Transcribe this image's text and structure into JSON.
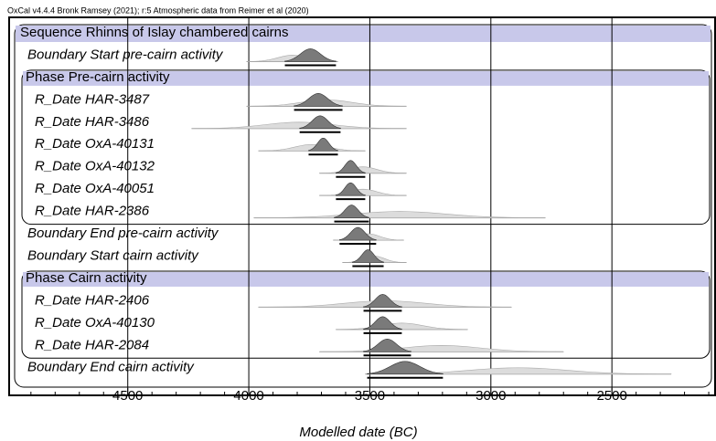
{
  "chart_data": {
    "type": "oxcal",
    "header": "OxCal v4.4.4 Bronk Ramsey (2021); r:5 Atmospheric data from Reimer et al (2020)",
    "x_label": "Modelled date (BC)",
    "xlim": [
      4990,
      2070
    ],
    "xticks": [
      4500,
      4000,
      3500,
      3000,
      2500
    ],
    "minor_xticks": [
      4900,
      4800,
      4700,
      4600,
      4400,
      4300,
      4200,
      4100,
      3900,
      3800,
      3700,
      3600,
      3400,
      3300,
      3200,
      3100,
      2900,
      2800,
      2700,
      2600,
      2400,
      2300,
      2200,
      2100
    ],
    "rows": [
      {
        "label": "Sequence Rhinns of Islay chambered cairns",
        "kind": "sequence"
      },
      {
        "label": "Boundary Start pre-cairn activity",
        "range": [
          3851,
          3640
        ],
        "extent": [
          4009,
          3632
        ]
      },
      {
        "label": "Phase Pre-cairn activity",
        "kind": "phase"
      },
      {
        "label": "R_Date HAR-3487",
        "range": [
          3813,
          3613
        ],
        "extent": [
          4009,
          3349
        ]
      },
      {
        "label": "R_Date HAR-3486",
        "range": [
          3790,
          3621
        ],
        "extent": [
          4236,
          3349
        ]
      },
      {
        "label": "R_Date OxA-40131",
        "range": [
          3753,
          3632
        ],
        "extent": [
          3960,
          3519
        ]
      },
      {
        "label": "R_Date OxA-40132",
        "range": [
          3640,
          3519
        ],
        "extent": [
          3708,
          3349
        ]
      },
      {
        "label": "R_Date OxA-40051",
        "range": [
          3640,
          3519
        ],
        "extent": [
          3708,
          3349
        ]
      },
      {
        "label": "R_Date HAR-2386",
        "range": [
          3647,
          3504
        ],
        "extent": [
          3979,
          2775
        ]
      },
      {
        "label": "Boundary End pre-cairn activity",
        "range": [
          3625,
          3474
        ],
        "extent": [
          3651,
          3360
        ]
      },
      {
        "label": "Boundary Start cairn activity",
        "range": [
          3572,
          3443
        ],
        "extent": [
          3613,
          3349
        ]
      },
      {
        "label": "Phase Cairn activity",
        "kind": "phase"
      },
      {
        "label": "R_Date HAR-2406",
        "range": [
          3526,
          3368
        ],
        "extent": [
          3960,
          2915
        ]
      },
      {
        "label": "R_Date OxA-40130",
        "range": [
          3526,
          3368
        ],
        "extent": [
          3640,
          3096
        ]
      },
      {
        "label": "R_Date HAR-2084",
        "range": [
          3526,
          3330
        ],
        "extent": [
          3708,
          2700
        ]
      },
      {
        "label": "Boundary End cairn activity",
        "range": [
          3511,
          3198
        ],
        "extent": [
          3519,
          2255
        ]
      }
    ]
  }
}
